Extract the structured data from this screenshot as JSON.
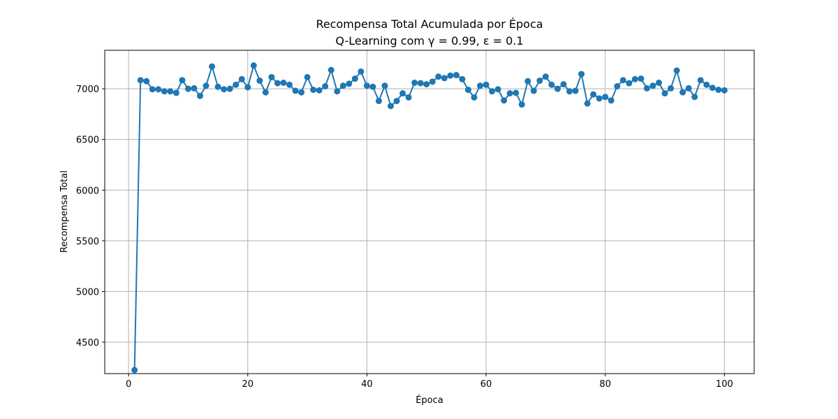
{
  "chart_data": {
    "type": "line",
    "title": "Recompensa Total Acumulada por Época",
    "subtitle": "Q-Learning com γ = 0.99, ε = 0.1",
    "xlabel": "Época",
    "ylabel": "Recompensa Total",
    "xlim": [
      -4,
      105
    ],
    "ylim": [
      4190,
      7380
    ],
    "x_ticks": [
      0,
      20,
      40,
      60,
      80,
      100
    ],
    "y_ticks": [
      4500,
      5000,
      5500,
      6000,
      6500,
      7000
    ],
    "grid": true,
    "colors": {
      "series": "#1f77b4",
      "grid": "#b0b0b0"
    },
    "series": [
      {
        "x": [
          1,
          2,
          3,
          4,
          5,
          6,
          7,
          8,
          9,
          10,
          11,
          12,
          13,
          14,
          15,
          16,
          17,
          18,
          19,
          20,
          21,
          22,
          23,
          24,
          25,
          26,
          27,
          28,
          29,
          30,
          31,
          32,
          33,
          34,
          35,
          36,
          37,
          38,
          39,
          40,
          41,
          42,
          43,
          44,
          45,
          46,
          47,
          48,
          49,
          50,
          51,
          52,
          53,
          54,
          55,
          56,
          57,
          58,
          59,
          60,
          61,
          62,
          63,
          64,
          65,
          66,
          67,
          68,
          69,
          70,
          71,
          72,
          73,
          74,
          75,
          76,
          77,
          78,
          79,
          80,
          81,
          82,
          83,
          84,
          85,
          86,
          87,
          88,
          89,
          90,
          91,
          92,
          93,
          94,
          95,
          96,
          97,
          98,
          99,
          100
        ],
        "values": [
          4225,
          7085,
          7075,
          6995,
          6995,
          6975,
          6975,
          6960,
          7085,
          7000,
          7005,
          6930,
          7030,
          7220,
          7020,
          6995,
          7000,
          7040,
          7095,
          7015,
          7230,
          7080,
          6965,
          7115,
          7055,
          7060,
          7040,
          6980,
          6965,
          7115,
          6990,
          6985,
          7025,
          7185,
          6975,
          7030,
          7050,
          7100,
          7170,
          7030,
          7020,
          6880,
          7030,
          6830,
          6880,
          6955,
          6915,
          7060,
          7055,
          7045,
          7070,
          7120,
          7105,
          7130,
          7135,
          7095,
          6990,
          6915,
          7030,
          7040,
          6975,
          6995,
          6885,
          6955,
          6960,
          6845,
          7075,
          6980,
          7080,
          7120,
          7040,
          7000,
          7045,
          6975,
          6980,
          7145,
          6855,
          6945,
          6905,
          6920,
          6885,
          7025,
          7085,
          7055,
          7095,
          7100,
          7005,
          7030,
          7060,
          6955,
          7005,
          7180,
          6965,
          7005,
          6920,
          7085,
          7040,
          7010,
          6990,
          6985
        ]
      }
    ]
  }
}
